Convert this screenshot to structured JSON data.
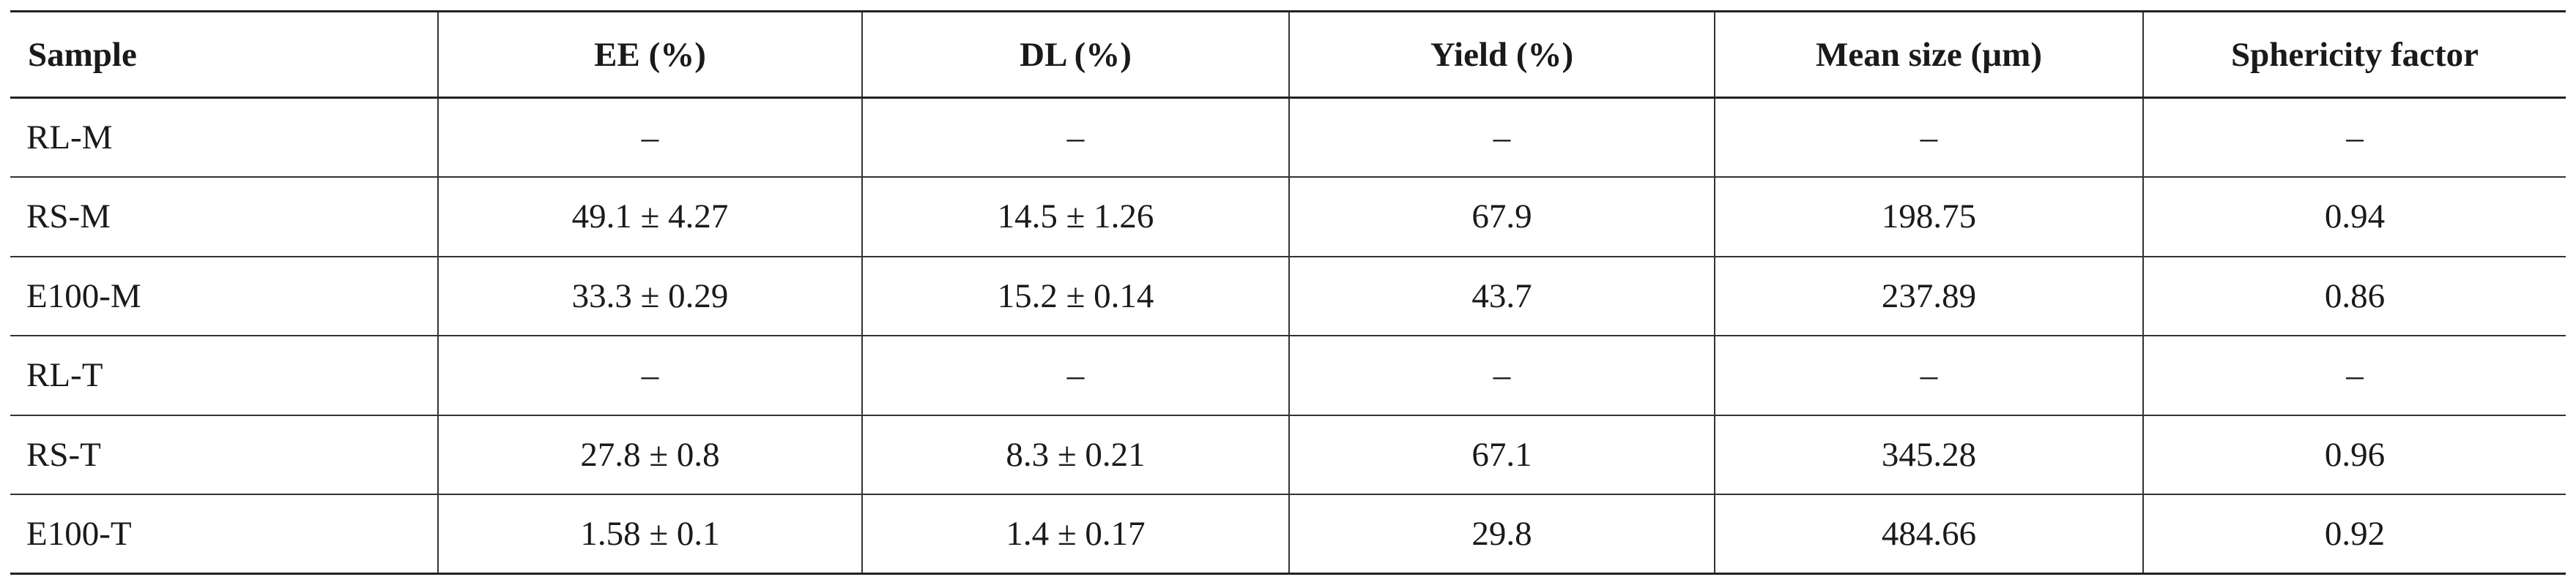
{
  "table": {
    "headers": [
      "Sample",
      "EE (%)",
      "DL (%)",
      "Yield (%)",
      "Mean size (µm)",
      "Sphericity factor"
    ],
    "rows": [
      [
        "RL-M",
        "–",
        "–",
        "–",
        "–",
        "–"
      ],
      [
        "RS-M",
        "49.1 ± 4.27",
        "14.5 ± 1.26",
        "67.9",
        "198.75",
        "0.94"
      ],
      [
        "E100-M",
        "33.3 ± 0.29",
        "15.2 ± 0.14",
        "43.7",
        "237.89",
        "0.86"
      ],
      [
        "RL-T",
        "–",
        "–",
        "–",
        "–",
        "–"
      ],
      [
        "RS-T",
        "27.8 ± 0.8",
        "8.3 ± 0.21",
        "67.1",
        "345.28",
        "0.96"
      ],
      [
        "E100-T",
        "1.58 ± 0.1",
        "1.4 ± 0.17",
        "29.8",
        "484.66",
        "0.92"
      ]
    ]
  }
}
